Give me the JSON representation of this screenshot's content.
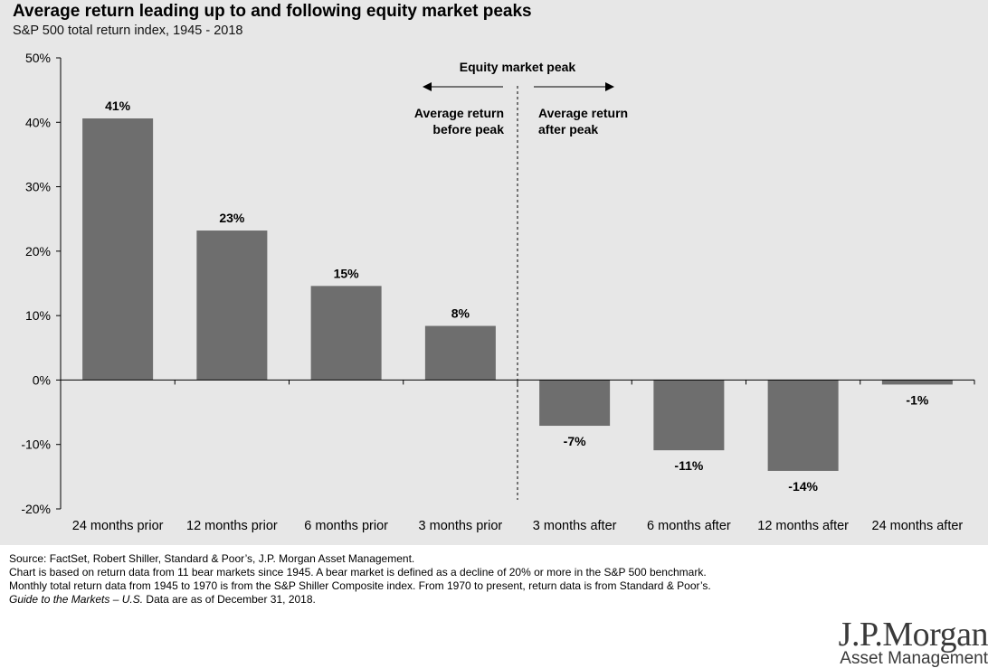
{
  "chart_data": {
    "type": "bar",
    "title": "Average return leading up to and following equity market peaks",
    "subtitle": "S&P 500 total return index, 1945 - 2018",
    "categories": [
      "24 months prior",
      "12 months prior",
      "6 months prior",
      "3 months prior",
      "3 months after",
      "6 months after",
      "12 months after",
      "24 months after"
    ],
    "values": [
      40.6,
      23.2,
      14.6,
      8.4,
      -7.1,
      -10.9,
      -14.1,
      -0.7
    ],
    "data_labels": [
      "41%",
      "23%",
      "15%",
      "8%",
      "-7%",
      "-11%",
      "-14%",
      "-1%"
    ],
    "ylim": [
      -20,
      50
    ],
    "yticks": [
      50,
      40,
      30,
      20,
      10,
      0,
      -10,
      -20
    ],
    "ytick_labels": [
      "50%",
      "40%",
      "30%",
      "20%",
      "10%",
      "0%",
      "-10%",
      "-20%"
    ],
    "bar_color": "#6e6e6e",
    "grid": false,
    "annotations": {
      "peak_label": "Equity market peak",
      "before_line1": "Average return",
      "before_line2": "before peak",
      "after_line1": "Average return",
      "after_line2": "after peak"
    }
  },
  "footnotes": {
    "line1": "Source: FactSet, Robert Shiller, Standard & Poor’s, J.P. Morgan Asset Management.",
    "line2": "Chart is based on return data from 11 bear markets since 1945. A bear market is defined as a decline of 20% or more in the S&P 500 benchmark.",
    "line3": "Monthly total return data from 1945 to 1970 is from the S&P Shiller Composite index. From 1970 to present, return data is from Standard & Poor’s.",
    "line4_italic": "Guide to the Markets – U.S.",
    "line4_rest": " Data are as of December 31, 2018."
  },
  "logo": {
    "main": "J.P.Morgan",
    "sub": "Asset Management"
  }
}
